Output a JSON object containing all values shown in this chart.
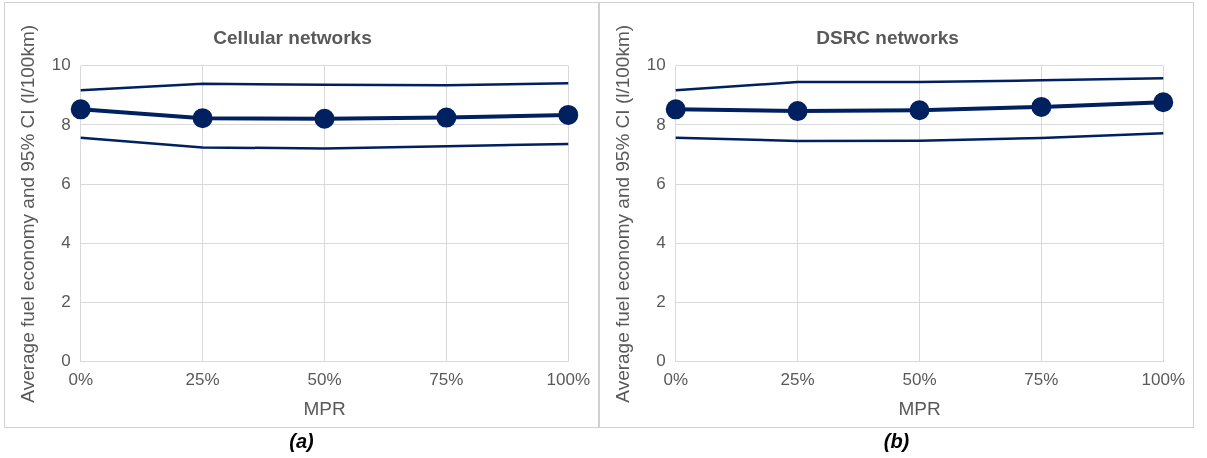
{
  "chart_data": [
    {
      "type": "line",
      "title": "Cellular networks",
      "xlabel": "MPR",
      "ylabel": "Average fuel economy and 95% CI (l/100km)",
      "categories": [
        "0%",
        "25%",
        "50%",
        "75%",
        "100%"
      ],
      "ylim": [
        0,
        10
      ],
      "yticks": [
        0,
        2,
        4,
        6,
        8,
        10
      ],
      "grid": true,
      "legend": false,
      "annotations": [
        "(a)"
      ],
      "series": [
        {
          "color": "#002060",
          "marker": "none",
          "values": [
            9.17,
            9.39,
            9.36,
            9.34,
            9.41
          ]
        },
        {
          "color": "#002060",
          "marker": "circle",
          "values": [
            8.53,
            8.23,
            8.21,
            8.25,
            8.34
          ]
        },
        {
          "color": "#002060",
          "marker": "none",
          "values": [
            7.57,
            7.24,
            7.21,
            7.28,
            7.36
          ]
        }
      ]
    },
    {
      "type": "line",
      "title": "DSRC networks",
      "xlabel": "MPR",
      "ylabel": "Average fuel economy and 95% CI (l/100km)",
      "categories": [
        "0%",
        "25%",
        "50%",
        "75%",
        "100%"
      ],
      "ylim": [
        0,
        10
      ],
      "yticks": [
        0,
        2,
        4,
        6,
        8,
        10
      ],
      "grid": true,
      "legend": false,
      "annotations": [
        "(b)"
      ],
      "series": [
        {
          "color": "#002060",
          "marker": "none",
          "values": [
            9.17,
            9.45,
            9.45,
            9.51,
            9.58
          ]
        },
        {
          "color": "#002060",
          "marker": "circle",
          "values": [
            8.53,
            8.47,
            8.5,
            8.61,
            8.77
          ]
        },
        {
          "color": "#002060",
          "marker": "none",
          "values": [
            7.57,
            7.46,
            7.47,
            7.56,
            7.72
          ]
        }
      ]
    }
  ]
}
